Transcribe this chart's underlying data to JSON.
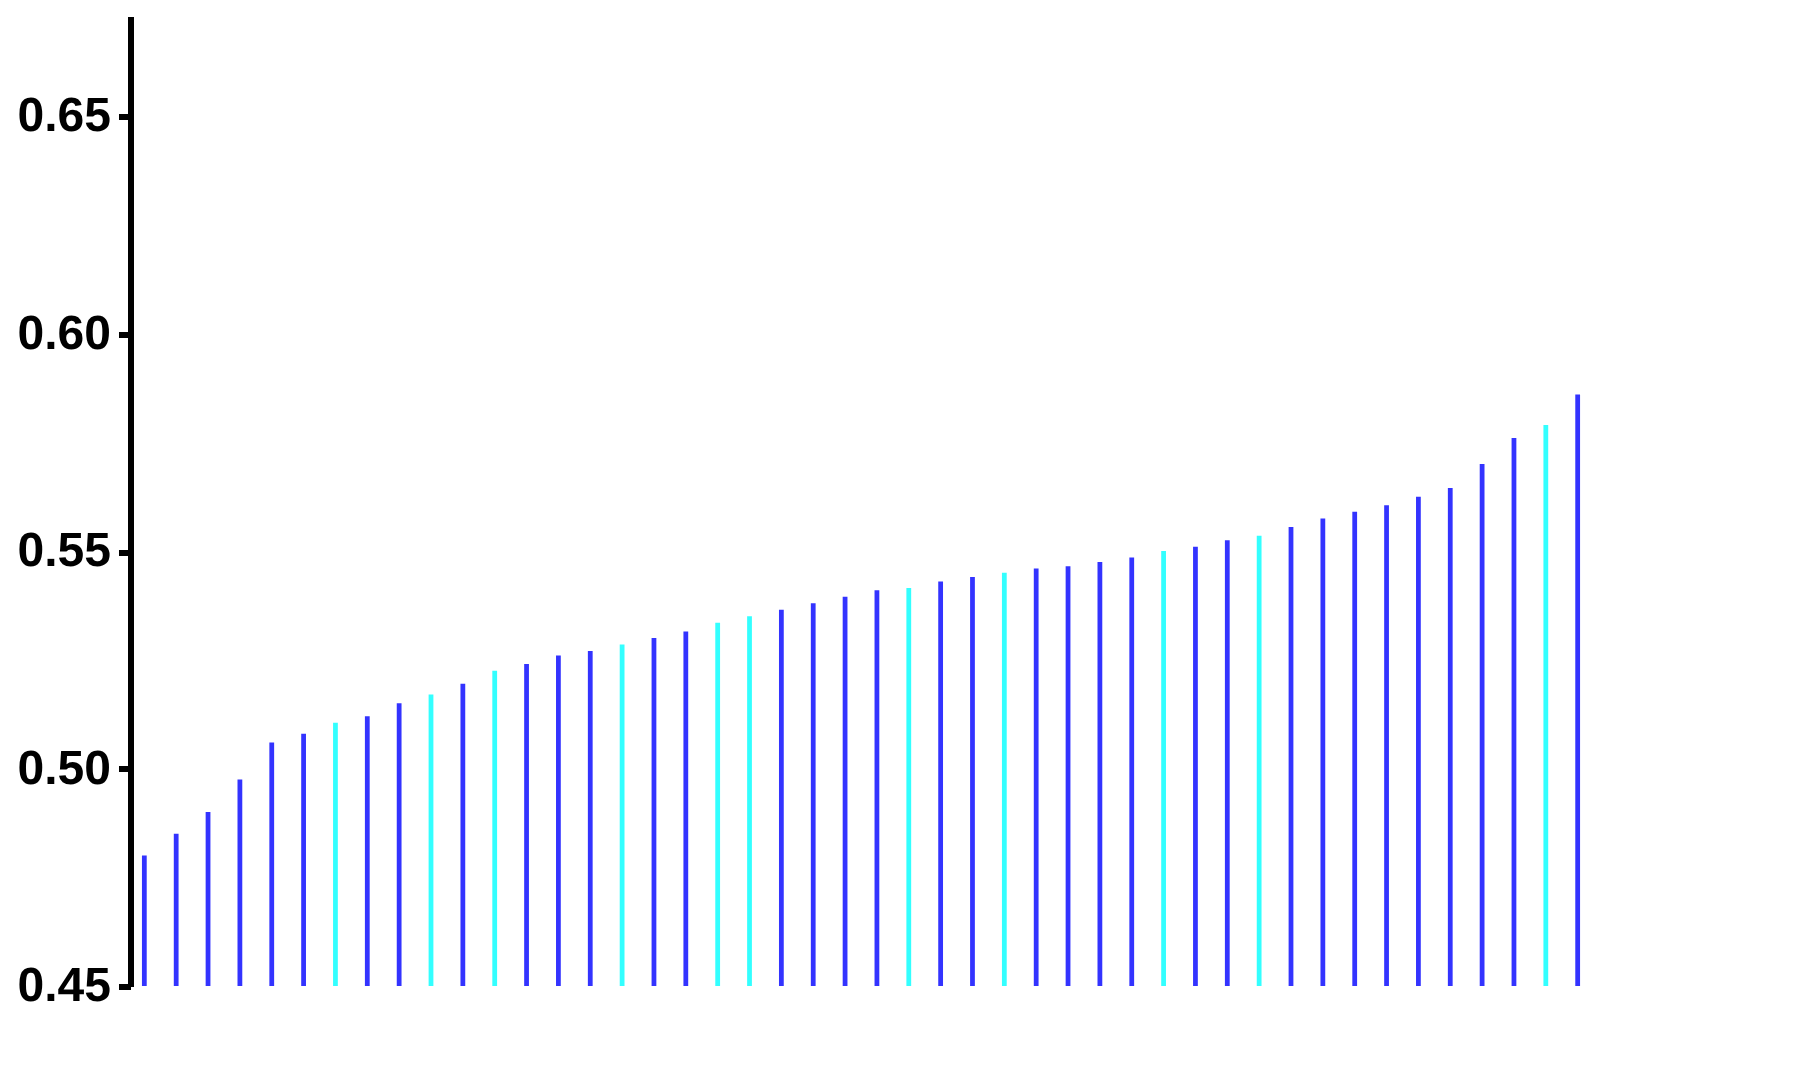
{
  "chart_data": {
    "type": "bar",
    "categories": [
      null,
      null,
      null,
      null,
      null,
      null,
      null,
      null,
      null,
      null,
      null,
      null,
      null,
      null,
      null,
      null,
      null,
      null,
      null,
      null,
      null,
      null,
      null,
      null,
      null,
      null,
      null,
      null,
      null,
      null,
      null,
      null,
      null,
      null,
      null,
      null,
      null,
      null,
      null,
      null,
      null,
      null,
      null,
      null,
      null,
      null
    ],
    "values": [
      0.48,
      0.485,
      0.49,
      0.4975,
      0.506,
      0.508,
      0.5105,
      0.512,
      0.515,
      0.517,
      0.5195,
      0.5225,
      0.524,
      0.526,
      0.527,
      0.5285,
      0.53,
      0.5315,
      0.5335,
      0.535,
      0.5365,
      0.538,
      0.5395,
      0.541,
      0.5415,
      0.543,
      0.544,
      0.545,
      0.546,
      0.5465,
      0.5475,
      0.5485,
      0.55,
      0.551,
      0.5525,
      0.5535,
      0.5555,
      0.5575,
      0.559,
      0.5605,
      0.5625,
      0.5645,
      0.57,
      0.576,
      0.579,
      0.586
    ],
    "colors": [
      "#3333ff",
      "#3333ff",
      "#3333ff",
      "#3333ff",
      "#3333ff",
      "#3333ff",
      "#33ffff",
      "#3333ff",
      "#3333ff",
      "#33ffff",
      "#3333ff",
      "#33ffff",
      "#3333ff",
      "#3333ff",
      "#3333ff",
      "#33ffff",
      "#3333ff",
      "#3333ff",
      "#33ffff",
      "#33ffff",
      "#3333ff",
      "#3333ff",
      "#3333ff",
      "#3333ff",
      "#33ffff",
      "#3333ff",
      "#3333ff",
      "#33ffff",
      "#3333ff",
      "#3333ff",
      "#3333ff",
      "#3333ff",
      "#33ffff",
      "#3333ff",
      "#3333ff",
      "#33ffff",
      "#3333ff",
      "#3333ff",
      "#3333ff",
      "#3333ff",
      "#3333ff",
      "#3333ff",
      "#3333ff",
      "#3333ff",
      "#33ffff",
      "#3333ff"
    ],
    "ylim": [
      0.45,
      0.673
    ],
    "yticks": [
      {
        "value": 0.45,
        "label": "0.45"
      },
      {
        "value": 0.5,
        "label": "0.50"
      },
      {
        "value": 0.55,
        "label": "0.55"
      },
      {
        "value": 0.6,
        "label": "0.60"
      },
      {
        "value": 0.65,
        "label": "0.65"
      }
    ],
    "grid": false,
    "legend": false,
    "tick_labels": "y"
  }
}
